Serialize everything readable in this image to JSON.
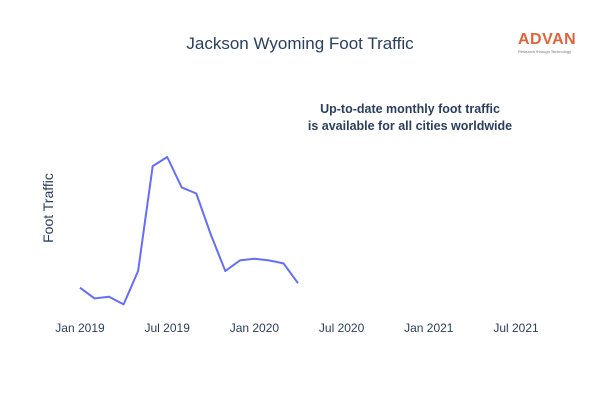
{
  "chart_data": {
    "type": "line",
    "title": "Jackson Wyoming Foot Traffic",
    "ylabel": "Foot Traffic",
    "xlabel": "",
    "annotation": [
      "Up-to-date monthly foot traffic",
      "is available for all cities worldwide"
    ],
    "x_ticks": [
      "Jan 2019",
      "Jul 2019",
      "Jan 2020",
      "Jul 2020",
      "Jan 2021",
      "Jul 2021"
    ],
    "x_range": [
      "2019-01",
      "2021-07"
    ],
    "y_range": [
      0,
      100
    ],
    "y_tick_labels_visible": false,
    "grid": false,
    "series": [
      {
        "color": "#636efa",
        "x": [
          "2019-01",
          "2019-02",
          "2019-03",
          "2019-04",
          "2019-05",
          "2019-06",
          "2019-07",
          "2019-08",
          "2019-09",
          "2019-10",
          "2019-11",
          "2019-12",
          "2020-01",
          "2020-02",
          "2020-03",
          "2020-04"
        ],
        "values": [
          14,
          7,
          8,
          3,
          25,
          94,
          100,
          80,
          76,
          49,
          25,
          32,
          33,
          32,
          30,
          17
        ]
      }
    ]
  },
  "logo": {
    "word": "ADVAN",
    "tagline": "Research through Technology"
  }
}
